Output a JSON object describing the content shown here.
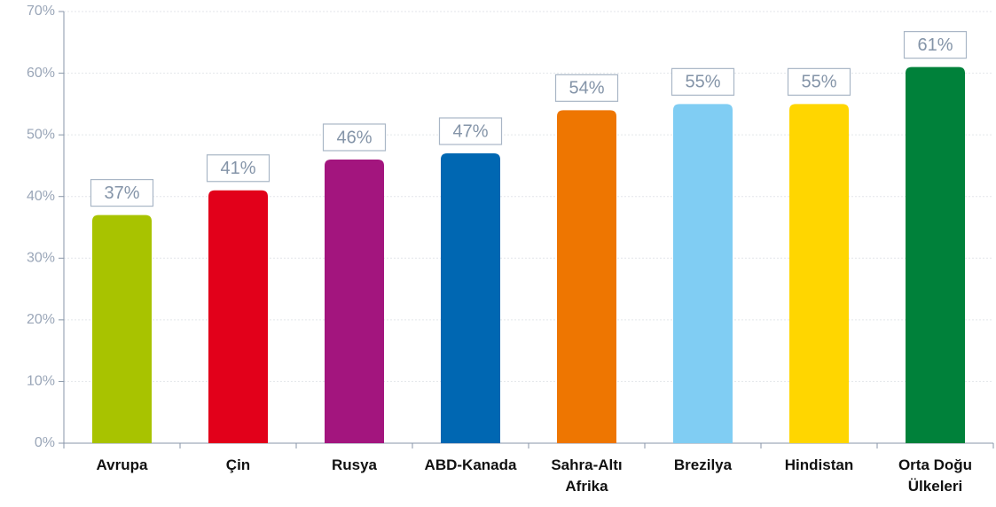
{
  "chart_data": {
    "type": "bar",
    "categories": [
      "Avrupa",
      "Çin",
      "Rusya",
      "ABD-Kanada",
      "Sahra-Altı\nAfrika",
      "Brezilya",
      "Hindistan",
      "Orta Doğu\nÜlkeleri"
    ],
    "values": [
      37,
      41,
      46,
      47,
      54,
      55,
      55,
      61
    ],
    "value_labels": [
      "37%",
      "41%",
      "46%",
      "47%",
      "54%",
      "55%",
      "55%",
      "61%"
    ],
    "colors": [
      "#a8c300",
      "#e2001a",
      "#a3157e",
      "#0067b2",
      "#ee7601",
      "#80cdf3",
      "#ffd600",
      "#00813a"
    ],
    "ylim": [
      0,
      70
    ],
    "yticks": [
      {
        "value": 0,
        "label": "0%"
      },
      {
        "value": 10,
        "label": "10%"
      },
      {
        "value": 20,
        "label": "20%"
      },
      {
        "value": 30,
        "label": "30%"
      },
      {
        "value": 40,
        "label": "40%"
      },
      {
        "value": 50,
        "label": "50%"
      },
      {
        "value": 60,
        "label": "60%"
      },
      {
        "value": 70,
        "label": "70%"
      }
    ],
    "grid": true
  }
}
